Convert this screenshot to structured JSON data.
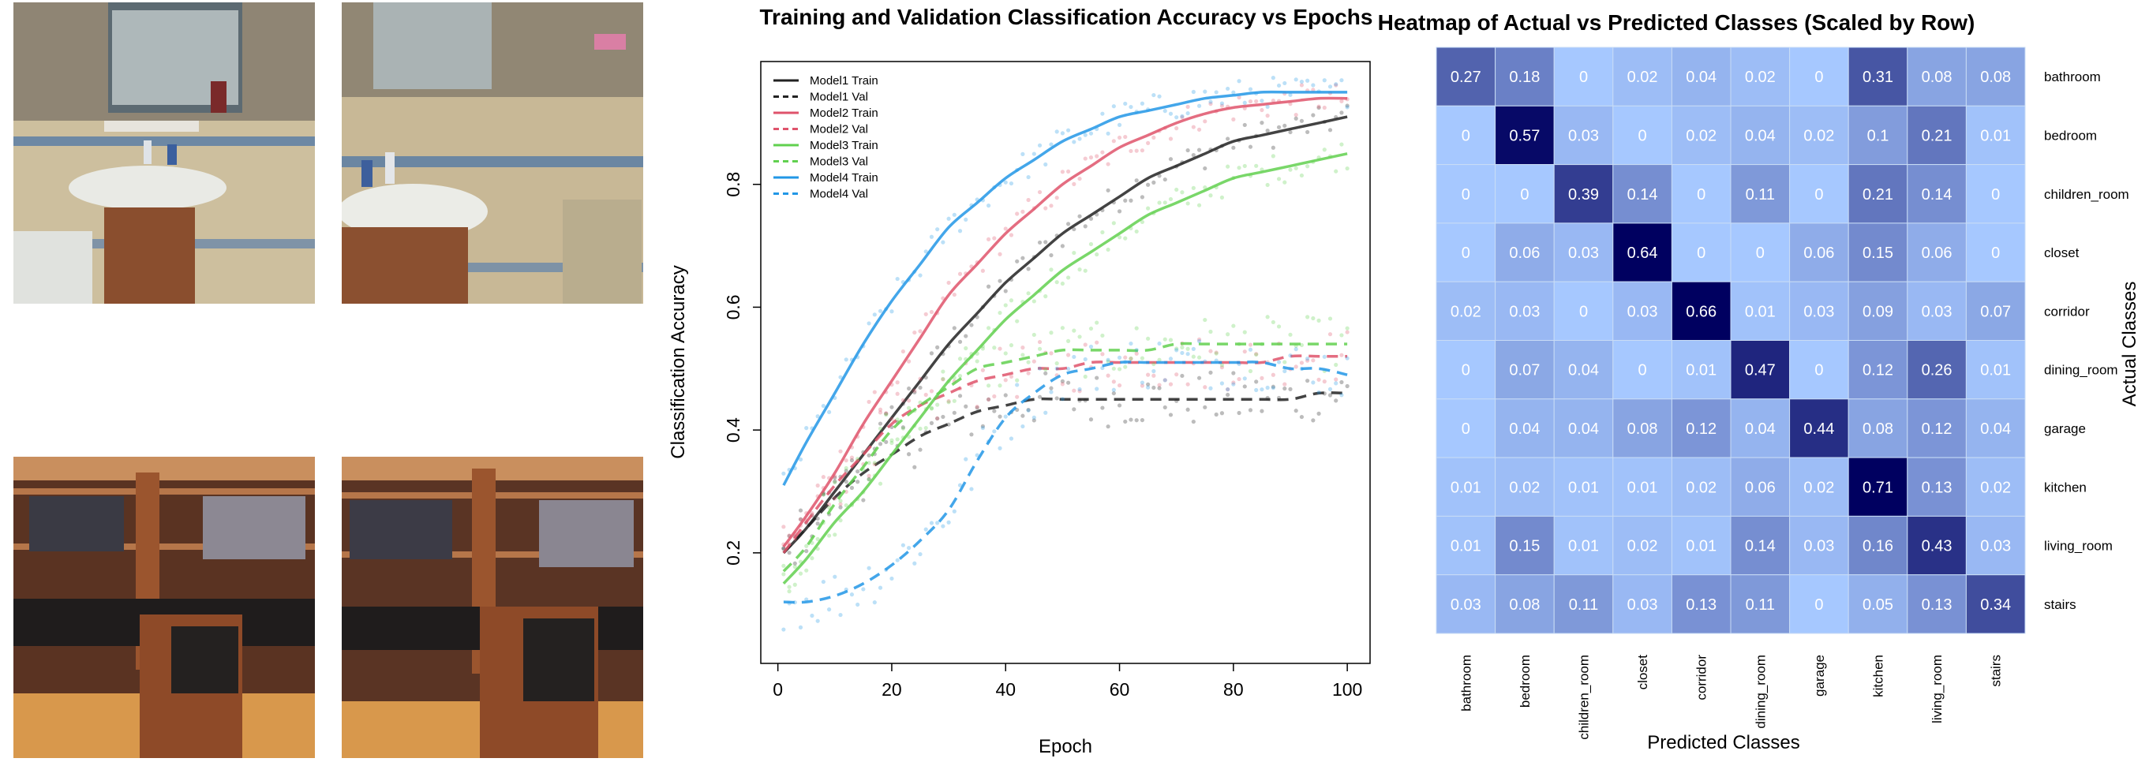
{
  "thumbnails": [
    {
      "scene": "bathroom",
      "icon": "bathroom-photo"
    },
    {
      "scene": "bathroom",
      "icon": "bathroom-photo"
    },
    {
      "scene": "closet",
      "icon": "closet-photo"
    },
    {
      "scene": "closet",
      "icon": "closet-photo"
    }
  ],
  "chart_data": [
    {
      "type": "line",
      "title": "Training and Validation Classification Accuracy vs Epochs",
      "xlabel": "Epoch",
      "ylabel": "Classification Accuracy",
      "xlim": [
        -3,
        104
      ],
      "ylim": [
        0.02,
        1.0
      ],
      "xticks": [
        0,
        20,
        40,
        60,
        80,
        100
      ],
      "yticks": [
        0.2,
        0.4,
        0.6,
        0.8
      ],
      "legend_position": "top-left",
      "x": [
        1,
        5,
        10,
        15,
        20,
        25,
        30,
        35,
        40,
        45,
        50,
        55,
        60,
        65,
        70,
        75,
        80,
        85,
        90,
        95,
        100
      ],
      "series": [
        {
          "name": "Model1 Train",
          "color": "#222222",
          "dash": "solid",
          "values": [
            0.2,
            0.24,
            0.3,
            0.36,
            0.42,
            0.48,
            0.54,
            0.59,
            0.64,
            0.68,
            0.72,
            0.75,
            0.78,
            0.81,
            0.83,
            0.85,
            0.87,
            0.88,
            0.89,
            0.9,
            0.91
          ]
        },
        {
          "name": "Model1 Val",
          "color": "#222222",
          "dash": "dashed",
          "values": [
            0.2,
            0.24,
            0.29,
            0.33,
            0.36,
            0.39,
            0.41,
            0.43,
            0.44,
            0.45,
            0.45,
            0.45,
            0.45,
            0.45,
            0.45,
            0.45,
            0.45,
            0.45,
            0.45,
            0.46,
            0.46
          ]
        },
        {
          "name": "Model2 Train",
          "color": "#df536b",
          "dash": "solid",
          "values": [
            0.21,
            0.26,
            0.33,
            0.41,
            0.48,
            0.55,
            0.62,
            0.67,
            0.72,
            0.76,
            0.8,
            0.83,
            0.86,
            0.88,
            0.9,
            0.915,
            0.925,
            0.93,
            0.935,
            0.94,
            0.94
          ]
        },
        {
          "name": "Model2 Val",
          "color": "#df536b",
          "dash": "dashed",
          "values": [
            0.2,
            0.25,
            0.31,
            0.36,
            0.41,
            0.44,
            0.46,
            0.48,
            0.49,
            0.5,
            0.5,
            0.51,
            0.51,
            0.51,
            0.51,
            0.51,
            0.51,
            0.51,
            0.52,
            0.52,
            0.52
          ]
        },
        {
          "name": "Model3 Train",
          "color": "#61d04f",
          "dash": "solid",
          "values": [
            0.15,
            0.19,
            0.25,
            0.3,
            0.36,
            0.42,
            0.48,
            0.53,
            0.58,
            0.62,
            0.66,
            0.69,
            0.72,
            0.75,
            0.77,
            0.79,
            0.81,
            0.82,
            0.83,
            0.84,
            0.85
          ]
        },
        {
          "name": "Model3 Val",
          "color": "#61d04f",
          "dash": "dashed",
          "values": [
            0.17,
            0.21,
            0.28,
            0.34,
            0.4,
            0.44,
            0.47,
            0.5,
            0.51,
            0.52,
            0.53,
            0.53,
            0.53,
            0.53,
            0.54,
            0.54,
            0.54,
            0.54,
            0.54,
            0.54,
            0.54
          ]
        },
        {
          "name": "Model4 Train",
          "color": "#2297e6",
          "dash": "solid",
          "values": [
            0.31,
            0.38,
            0.46,
            0.54,
            0.61,
            0.67,
            0.73,
            0.77,
            0.81,
            0.84,
            0.87,
            0.89,
            0.91,
            0.92,
            0.93,
            0.94,
            0.945,
            0.95,
            0.95,
            0.95,
            0.95
          ]
        },
        {
          "name": "Model4 Val",
          "color": "#2297e6",
          "dash": "dashed",
          "values": [
            0.12,
            0.12,
            0.13,
            0.15,
            0.18,
            0.22,
            0.27,
            0.35,
            0.42,
            0.46,
            0.49,
            0.5,
            0.51,
            0.51,
            0.51,
            0.51,
            0.51,
            0.51,
            0.5,
            0.5,
            0.49
          ]
        }
      ]
    },
    {
      "type": "heatmap",
      "title": "Heatmap of Actual vs Predicted Classes (Scaled by Row)",
      "xlabel": "Predicted Classes",
      "ylabel": "Actual Classes",
      "x_categories": [
        "bathroom",
        "bedroom",
        "children_room",
        "closet",
        "corridor",
        "dining_room",
        "garage",
        "kitchen",
        "living_room",
        "stairs"
      ],
      "y_categories": [
        "bathroom",
        "bedroom",
        "children_room",
        "closet",
        "corridor",
        "dining_room",
        "garage",
        "kitchen",
        "living_room",
        "stairs"
      ],
      "color_low": "#a6c8ff",
      "color_high": "#000060",
      "values": [
        [
          "0.27",
          "0.18",
          "0",
          "0.02",
          "0.04",
          "0.02",
          "0",
          "0.31",
          "0.08",
          "0.08"
        ],
        [
          "0",
          "0.57",
          "0.03",
          "0",
          "0.02",
          "0.04",
          "0.02",
          "0.1",
          "0.21",
          "0.01"
        ],
        [
          "0",
          "0",
          "0.39",
          "0.14",
          "0",
          "0.11",
          "0",
          "0.21",
          "0.14",
          "0"
        ],
        [
          "0",
          "0.06",
          "0.03",
          "0.64",
          "0",
          "0",
          "0.06",
          "0.15",
          "0.06",
          "0"
        ],
        [
          "0.02",
          "0.03",
          "0",
          "0.03",
          "0.66",
          "0.01",
          "0.03",
          "0.09",
          "0.03",
          "0.07"
        ],
        [
          "0",
          "0.07",
          "0.04",
          "0",
          "0.01",
          "0.47",
          "0",
          "0.12",
          "0.26",
          "0.01"
        ],
        [
          "0",
          "0.04",
          "0.04",
          "0.08",
          "0.12",
          "0.04",
          "0.44",
          "0.08",
          "0.12",
          "0.04"
        ],
        [
          "0.01",
          "0.02",
          "0.01",
          "0.01",
          "0.02",
          "0.06",
          "0.02",
          "0.71",
          "0.13",
          "0.02"
        ],
        [
          "0.01",
          "0.15",
          "0.01",
          "0.02",
          "0.01",
          "0.14",
          "0.03",
          "0.16",
          "0.43",
          "0.03"
        ],
        [
          "0.03",
          "0.08",
          "0.11",
          "0.03",
          "0.13",
          "0.11",
          "0",
          "0.05",
          "0.13",
          "0.34"
        ]
      ]
    }
  ]
}
